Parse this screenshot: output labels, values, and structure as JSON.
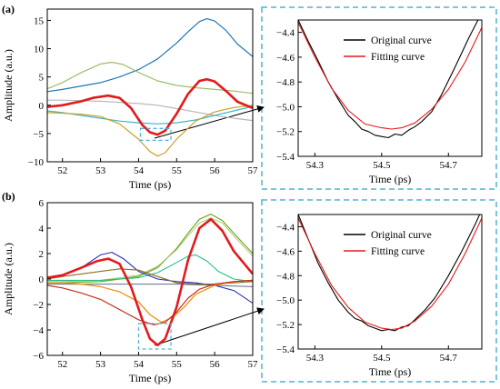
{
  "figure": {
    "panel_a_label": "(a)",
    "panel_b_label": "(b)"
  },
  "colors": {
    "highlight": "#e31a1c",
    "box": "#4fb3d9",
    "original": "#000000",
    "fitting": "#e31a1c"
  },
  "chart_data": [
    {
      "id": "a-main",
      "type": "line",
      "xlabel": "Time (ps)",
      "ylabel": "Amplitude (a.u.)",
      "xlim": [
        51.6,
        57
      ],
      "ylim": [
        -10,
        17
      ],
      "xticks": [
        52,
        53,
        54,
        55,
        56,
        57
      ],
      "yticks": [
        -10,
        -5,
        0,
        5,
        10,
        15
      ],
      "series": [
        {
          "color": "#1f77b4",
          "width": 1.2,
          "x": [
            51.6,
            52,
            52.5,
            53,
            53.5,
            54,
            54.5,
            55,
            55.3,
            55.6,
            55.8,
            56,
            56.3,
            56.6,
            57
          ],
          "y": [
            2.4,
            2.8,
            3.4,
            4.0,
            5.0,
            6.3,
            8.2,
            11.0,
            13.0,
            14.8,
            15.3,
            14.9,
            13.2,
            10.8,
            8.6
          ]
        },
        {
          "color": "#9cbd6b",
          "width": 1.2,
          "x": [
            51.6,
            52,
            52.5,
            53,
            53.3,
            53.6,
            54,
            54.5,
            55,
            55.5,
            56,
            56.5,
            57
          ],
          "y": [
            2.9,
            4.0,
            5.8,
            7.3,
            7.6,
            7.2,
            5.8,
            4.3,
            3.5,
            3.1,
            2.8,
            2.5,
            2.1
          ]
        },
        {
          "color": "#b8b8b8",
          "width": 1.2,
          "x": [
            51.6,
            52,
            53,
            54,
            54.5,
            55,
            55.5,
            56,
            56.5,
            57
          ],
          "y": [
            0.9,
            0.9,
            0.7,
            0.3,
            0.0,
            -0.6,
            -1.2,
            -1.8,
            -2.3,
            -2.7
          ]
        },
        {
          "color": "#3fb5cf",
          "width": 1.2,
          "x": [
            51.6,
            52,
            52.5,
            53,
            53.5,
            54,
            54.5,
            55,
            55.5,
            56,
            56.5,
            57
          ],
          "y": [
            -1.0,
            -1.3,
            -1.8,
            -2.3,
            -2.8,
            -3.1,
            -3.3,
            -3.1,
            -2.6,
            -1.8,
            -1.0,
            -0.2
          ]
        },
        {
          "color": "#c9a227",
          "width": 1.2,
          "x": [
            51.6,
            52,
            52.5,
            53,
            53.5,
            54,
            54.3,
            54.5,
            54.7,
            55,
            55.5,
            56,
            56.5,
            57
          ],
          "y": [
            -1.3,
            -1.4,
            -1.6,
            -2.0,
            -3.3,
            -6.0,
            -8.2,
            -9.0,
            -8.4,
            -6.0,
            -2.8,
            -1.2,
            -0.4,
            0.0
          ]
        },
        {
          "color": "#e31a1c",
          "width": 2.6,
          "x": [
            51.6,
            52,
            52.5,
            52.8,
            53.2,
            53.5,
            53.8,
            54.1,
            54.3,
            54.5,
            54.7,
            55,
            55.3,
            55.6,
            55.8,
            56,
            56.3,
            56.6,
            57
          ],
          "y": [
            -0.3,
            0.0,
            0.7,
            1.3,
            1.7,
            1.3,
            -0.5,
            -3.5,
            -4.8,
            -5.2,
            -4.5,
            -1.5,
            2.0,
            4.3,
            4.6,
            4.2,
            2.5,
            0.6,
            -0.5
          ]
        }
      ],
      "zoom_box": {
        "x": [
          54.05,
          54.85
        ],
        "y": [
          -6.2,
          -4.1
        ]
      }
    },
    {
      "id": "a-inset",
      "type": "line",
      "xlabel": "Time (ps)",
      "xlim": [
        54.25,
        54.8
      ],
      "ylim": [
        -5.4,
        -4.3
      ],
      "xticks": [
        54.3,
        54.5,
        54.7
      ],
      "yticks": [
        -5.4,
        -5.2,
        -5.0,
        -4.8,
        -4.6,
        -4.4
      ],
      "legend": {
        "position": "top-right",
        "entries": [
          "Original curve",
          "Fitting curve"
        ]
      },
      "series": [
        {
          "name": "Original curve",
          "color": "#000000",
          "width": 1.1,
          "x": [
            54.25,
            54.28,
            54.31,
            54.34,
            54.37,
            54.4,
            54.42,
            54.44,
            54.46,
            54.48,
            54.5,
            54.52,
            54.54,
            54.56,
            54.58,
            54.6,
            54.62,
            54.65,
            54.68,
            54.72,
            54.76,
            54.8
          ],
          "y": [
            -4.3,
            -4.47,
            -4.63,
            -4.8,
            -4.94,
            -5.07,
            -5.12,
            -5.18,
            -5.2,
            -5.23,
            -5.24,
            -5.25,
            -5.22,
            -5.23,
            -5.19,
            -5.16,
            -5.12,
            -5.04,
            -4.9,
            -4.68,
            -4.45,
            -4.24
          ]
        },
        {
          "name": "Fitting curve",
          "color": "#e31a1c",
          "width": 1.1,
          "x": [
            54.25,
            54.3,
            54.35,
            54.4,
            54.45,
            54.5,
            54.53,
            54.56,
            54.6,
            54.65,
            54.7,
            54.75,
            54.8
          ],
          "y": [
            -4.32,
            -4.6,
            -4.85,
            -5.03,
            -5.14,
            -5.17,
            -5.18,
            -5.17,
            -5.13,
            -5.02,
            -4.86,
            -4.64,
            -4.36
          ]
        }
      ]
    },
    {
      "id": "b-main",
      "type": "line",
      "xlabel": "Time (ps)",
      "ylabel": "Amplitude (a.u.)",
      "xlim": [
        51.6,
        57
      ],
      "ylim": [
        -6,
        6
      ],
      "xticks": [
        52,
        53,
        54,
        55,
        56,
        57
      ],
      "yticks": [
        -6,
        -4,
        -2,
        0,
        2,
        4,
        6
      ],
      "series": [
        {
          "color": "#6fa81a",
          "width": 1.2,
          "x": [
            51.6,
            52,
            53,
            54,
            54.5,
            55,
            55.3,
            55.6,
            55.9,
            56.2,
            56.5,
            57
          ],
          "y": [
            -0.3,
            -0.3,
            -0.2,
            0.2,
            0.9,
            2.4,
            3.6,
            4.7,
            5.1,
            4.6,
            3.6,
            2.0
          ]
        },
        {
          "color": "#a8c97a",
          "width": 1.0,
          "x": [
            51.6,
            52,
            53,
            54,
            54.5,
            55,
            55.3,
            55.6,
            55.9,
            56.2,
            56.5,
            57
          ],
          "y": [
            -0.2,
            -0.2,
            -0.1,
            0.3,
            1.0,
            2.3,
            3.4,
            4.4,
            4.8,
            4.4,
            3.4,
            1.8
          ]
        },
        {
          "color": "#22c08a",
          "width": 1.1,
          "x": [
            51.6,
            52,
            53,
            54,
            54.5,
            55,
            55.3,
            55.5,
            55.8,
            56.1,
            56.5,
            57
          ],
          "y": [
            -0.1,
            -0.1,
            -0.1,
            0.1,
            0.5,
            1.3,
            1.8,
            1.9,
            1.4,
            0.6,
            0.0,
            -0.2
          ]
        },
        {
          "color": "#2a2ab8",
          "width": 1.1,
          "x": [
            51.6,
            52,
            52.5,
            53,
            53.3,
            53.6,
            54,
            54.5,
            55,
            55.5,
            56,
            56.5,
            57
          ],
          "y": [
            0.1,
            0.3,
            0.9,
            1.9,
            2.1,
            1.6,
            0.6,
            0.0,
            -0.2,
            -0.3,
            -0.5,
            -0.9,
            -1.9
          ]
        },
        {
          "color": "#8c6d1f",
          "width": 1.1,
          "x": [
            51.6,
            52,
            52.5,
            53,
            53.5,
            54,
            54.5,
            55,
            55.5,
            56,
            56.5,
            57
          ],
          "y": [
            0.0,
            0.2,
            0.4,
            0.6,
            0.8,
            0.7,
            0.2,
            -0.3,
            -0.4,
            -0.4,
            -0.3,
            -0.2
          ]
        },
        {
          "color": "#5f6f8c",
          "width": 1.0,
          "x": [
            51.6,
            52,
            53,
            54,
            55,
            56,
            57
          ],
          "y": [
            -0.4,
            -0.4,
            -0.4,
            -0.4,
            -0.4,
            -0.5,
            -0.6
          ]
        },
        {
          "color": "#f08a00",
          "width": 1.2,
          "x": [
            51.6,
            52,
            52.5,
            53,
            53.5,
            54,
            54.3,
            54.6,
            54.9,
            55.2,
            55.5,
            56,
            56.5,
            57
          ],
          "y": [
            -0.3,
            -0.3,
            -0.4,
            -0.6,
            -1.0,
            -1.8,
            -2.8,
            -3.4,
            -3.0,
            -2.2,
            -1.2,
            -0.5,
            -0.2,
            -0.1
          ]
        },
        {
          "color": "#c2301a",
          "width": 1.2,
          "x": [
            51.6,
            52,
            52.5,
            53,
            53.5,
            54,
            54.4,
            54.7,
            55,
            55.3,
            55.6,
            56,
            56.5,
            57
          ],
          "y": [
            -0.5,
            -0.7,
            -1.1,
            -1.6,
            -2.4,
            -3.2,
            -3.6,
            -3.4,
            -2.6,
            -1.5,
            -0.8,
            -0.4,
            -0.2,
            -0.1
          ]
        },
        {
          "color": "#e31a1c",
          "width": 2.6,
          "x": [
            51.6,
            52,
            52.5,
            52.9,
            53.2,
            53.5,
            53.8,
            54.1,
            54.3,
            54.5,
            54.7,
            55,
            55.3,
            55.6,
            55.9,
            56.2,
            56.5,
            57
          ],
          "y": [
            0.1,
            0.3,
            0.9,
            1.4,
            1.6,
            1.2,
            -0.6,
            -3.2,
            -4.7,
            -5.2,
            -4.7,
            -2.2,
            1.5,
            4.0,
            4.7,
            3.8,
            2.2,
            0.4
          ]
        }
      ],
      "zoom_box": {
        "x": [
          54.0,
          54.85
        ],
        "y": [
          -5.5,
          -3.5
        ]
      }
    },
    {
      "id": "b-inset",
      "type": "line",
      "xlabel": "Time (ps)",
      "xlim": [
        54.25,
        54.8
      ],
      "ylim": [
        -5.4,
        -4.3
      ],
      "xticks": [
        54.3,
        54.5,
        54.7
      ],
      "yticks": [
        -5.4,
        -5.2,
        -5.0,
        -4.8,
        -4.6,
        -4.4
      ],
      "legend": {
        "position": "top-right",
        "entries": [
          "Original curve",
          "Fitting curve"
        ]
      },
      "series": [
        {
          "name": "Original curve",
          "color": "#000000",
          "width": 1.1,
          "x": [
            54.25,
            54.28,
            54.31,
            54.34,
            54.37,
            54.4,
            54.42,
            54.44,
            54.46,
            54.48,
            54.5,
            54.52,
            54.54,
            54.56,
            54.58,
            54.6,
            54.63,
            54.66,
            54.7,
            54.74,
            54.78,
            54.8
          ],
          "y": [
            -4.3,
            -4.5,
            -4.7,
            -4.86,
            -5.0,
            -5.1,
            -5.15,
            -5.17,
            -5.21,
            -5.23,
            -5.25,
            -5.24,
            -5.25,
            -5.22,
            -5.21,
            -5.16,
            -5.08,
            -4.98,
            -4.8,
            -4.6,
            -4.38,
            -4.26
          ]
        },
        {
          "name": "Fitting curve",
          "color": "#e31a1c",
          "width": 1.1,
          "x": [
            54.25,
            54.3,
            54.35,
            54.4,
            54.45,
            54.5,
            54.53,
            54.56,
            54.6,
            54.65,
            54.7,
            54.75,
            54.8
          ],
          "y": [
            -4.33,
            -4.62,
            -4.88,
            -5.06,
            -5.18,
            -5.23,
            -5.24,
            -5.23,
            -5.17,
            -5.05,
            -4.87,
            -4.62,
            -4.33
          ]
        }
      ]
    }
  ]
}
